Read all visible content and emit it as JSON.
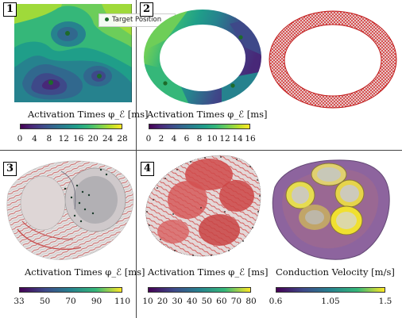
{
  "panels": [
    {
      "label": "1",
      "axis_title": "Activation Times φ_ℰ [ms]",
      "ticks": [
        "0",
        "4",
        "8",
        "12",
        "16",
        "20",
        "24",
        "28"
      ],
      "colormap": [
        "#440154",
        "#482878",
        "#3e4989",
        "#31688e",
        "#26828e",
        "#1f9e89",
        "#35b779",
        "#6ece58",
        "#b5de2b",
        "#fde725"
      ]
    },
    {
      "label": "2",
      "axis_title": "Activation Times φ_ℰ [ms]",
      "ticks": [
        "0",
        "2",
        "4",
        "6",
        "8",
        "10",
        "12",
        "14",
        "16"
      ],
      "colormap": [
        "#440154",
        "#482878",
        "#3e4989",
        "#31688e",
        "#26828e",
        "#1f9e89",
        "#35b779",
        "#6ece58",
        "#b5de2b",
        "#fde725"
      ]
    },
    {
      "label": "3",
      "axis_title": "Activation Times φ_ℰ [ms]",
      "ticks": [
        "33",
        "50",
        "70",
        "90",
        "110"
      ],
      "colormap": [
        "#440154",
        "#3e4989",
        "#26828e",
        "#35b779",
        "#fde725"
      ]
    },
    {
      "label": "4",
      "axis_title": "Activation Times φ_ℰ [ms]",
      "ticks": [
        "10",
        "20",
        "30",
        "40",
        "50",
        "60",
        "70",
        "80"
      ],
      "colormap": [
        "#440154",
        "#3e4989",
        "#26828e",
        "#35b779",
        "#fde725"
      ]
    },
    {
      "label": "",
      "axis_title": "Conduction Velocity [m/s]",
      "ticks": [
        "0.6",
        "1.05",
        "1.5"
      ],
      "colormap": [
        "#440154",
        "#3e4989",
        "#26828e",
        "#35b779",
        "#fde725"
      ]
    }
  ],
  "legend": {
    "text": "Target Position"
  }
}
